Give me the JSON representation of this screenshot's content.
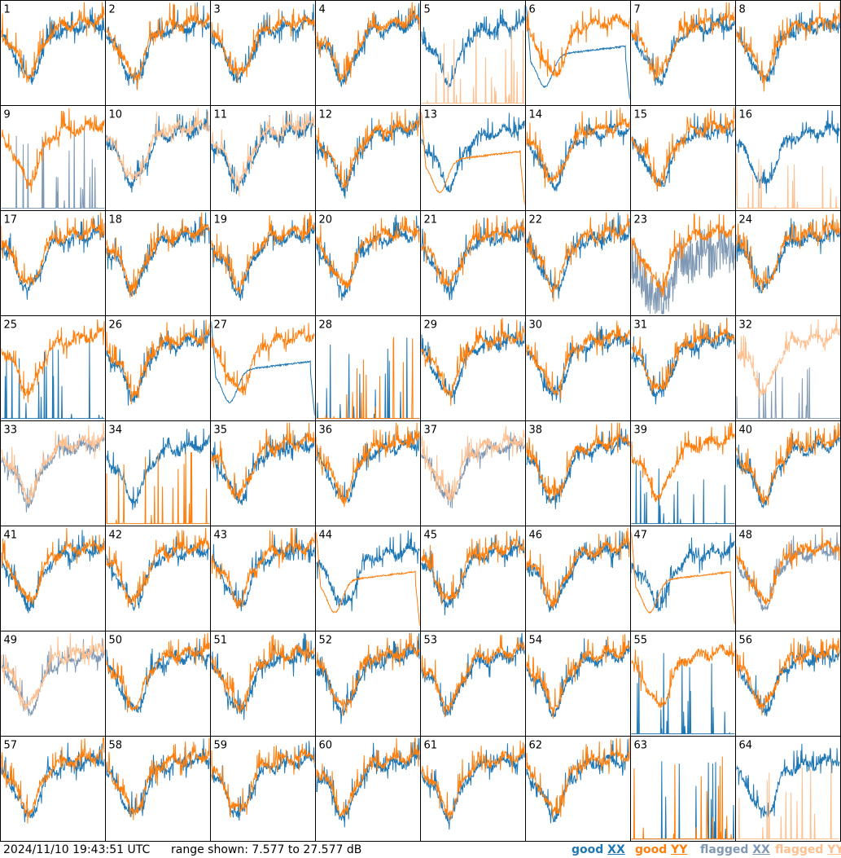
{
  "footer": {
    "timestamp": "2024/11/10 19:43:51 UTC",
    "range_label": "range shown: 7.577 to 27.577 dB"
  },
  "legend": [
    {
      "word": "good",
      "pol": "XX",
      "color": "#1f77b4"
    },
    {
      "word": "good",
      "pol": "YY",
      "color": "#ff7f0e"
    },
    {
      "word": "flagged",
      "pol": "XX",
      "color": "#7f99b4"
    },
    {
      "word": "flagged",
      "pol": "YY",
      "color": "#ffbf8f"
    }
  ],
  "colors": {
    "good_xx": "#1f77b4",
    "good_yy": "#ff7f0e",
    "flagged_xx": "#7f99b4",
    "flagged_yy": "#ffbf8f"
  },
  "chart_data": {
    "type": "line",
    "layout": "8x8 small multiples",
    "ylim": [
      7.577,
      27.577
    ],
    "unit": "dB",
    "grid": false,
    "panels": [
      {
        "label": "1",
        "xx": "good",
        "yy": "good",
        "xx_shape": "normal",
        "yy_shape": "normal"
      },
      {
        "label": "2",
        "xx": "good",
        "yy": "good",
        "xx_shape": "normal",
        "yy_shape": "normal"
      },
      {
        "label": "3",
        "xx": "good",
        "yy": "good",
        "xx_shape": "normal",
        "yy_shape": "normal"
      },
      {
        "label": "4",
        "xx": "good",
        "yy": "good",
        "xx_shape": "normal",
        "yy_shape": "normal"
      },
      {
        "label": "5",
        "xx": "good",
        "yy": "flagged",
        "xx_shape": "normal",
        "yy_shape": "spikes"
      },
      {
        "label": "6",
        "xx": "good",
        "yy": "good",
        "xx_shape": "smooth",
        "yy_shape": "normal"
      },
      {
        "label": "7",
        "xx": "good",
        "yy": "good",
        "xx_shape": "normal",
        "yy_shape": "normal"
      },
      {
        "label": "8",
        "xx": "good",
        "yy": "good",
        "xx_shape": "normal",
        "yy_shape": "normal"
      },
      {
        "label": "9",
        "xx": "flagged",
        "yy": "good",
        "xx_shape": "spikes",
        "yy_shape": "normal"
      },
      {
        "label": "10",
        "xx": "good",
        "yy": "flagged",
        "xx_shape": "normal",
        "yy_shape": "normal"
      },
      {
        "label": "11",
        "xx": "good",
        "yy": "flagged",
        "xx_shape": "normal",
        "yy_shape": "normal"
      },
      {
        "label": "12",
        "xx": "good",
        "yy": "good",
        "xx_shape": "normal",
        "yy_shape": "normal"
      },
      {
        "label": "13",
        "xx": "good",
        "yy": "good",
        "xx_shape": "normal",
        "yy_shape": "smooth"
      },
      {
        "label": "14",
        "xx": "good",
        "yy": "good",
        "xx_shape": "normal",
        "yy_shape": "normal"
      },
      {
        "label": "15",
        "xx": "good",
        "yy": "good",
        "xx_shape": "normal",
        "yy_shape": "normal"
      },
      {
        "label": "16",
        "xx": "good",
        "yy": "flagged",
        "xx_shape": "normal",
        "yy_shape": "spikes"
      },
      {
        "label": "17",
        "xx": "good",
        "yy": "good",
        "xx_shape": "normal",
        "yy_shape": "normal"
      },
      {
        "label": "18",
        "xx": "good",
        "yy": "good",
        "xx_shape": "normal",
        "yy_shape": "normal"
      },
      {
        "label": "19",
        "xx": "good",
        "yy": "good",
        "xx_shape": "normal",
        "yy_shape": "normal"
      },
      {
        "label": "20",
        "xx": "good",
        "yy": "good",
        "xx_shape": "normal",
        "yy_shape": "normal"
      },
      {
        "label": "21",
        "xx": "good",
        "yy": "good",
        "xx_shape": "normal",
        "yy_shape": "normal"
      },
      {
        "label": "22",
        "xx": "good",
        "yy": "good",
        "xx_shape": "normal",
        "yy_shape": "normal"
      },
      {
        "label": "23",
        "xx": "flagged",
        "yy": "good",
        "xx_shape": "noisy",
        "yy_shape": "normal"
      },
      {
        "label": "24",
        "xx": "good",
        "yy": "good",
        "xx_shape": "normal",
        "yy_shape": "normal"
      },
      {
        "label": "25",
        "xx": "good",
        "yy": "good",
        "xx_shape": "spikes",
        "yy_shape": "normal"
      },
      {
        "label": "26",
        "xx": "good",
        "yy": "good",
        "xx_shape": "normal",
        "yy_shape": "normal"
      },
      {
        "label": "27",
        "xx": "good",
        "yy": "good",
        "xx_shape": "smooth",
        "yy_shape": "normal"
      },
      {
        "label": "28",
        "xx": "good",
        "yy": "good",
        "xx_shape": "spikes",
        "yy_shape": "spikes"
      },
      {
        "label": "29",
        "xx": "good",
        "yy": "good",
        "xx_shape": "normal",
        "yy_shape": "normal"
      },
      {
        "label": "30",
        "xx": "good",
        "yy": "good",
        "xx_shape": "normal",
        "yy_shape": "normal"
      },
      {
        "label": "31",
        "xx": "good",
        "yy": "good",
        "xx_shape": "normal",
        "yy_shape": "normal"
      },
      {
        "label": "32",
        "xx": "flagged",
        "yy": "flagged",
        "xx_shape": "spikes",
        "yy_shape": "normal"
      },
      {
        "label": "33",
        "xx": "flagged",
        "yy": "flagged",
        "xx_shape": "normal",
        "yy_shape": "normal"
      },
      {
        "label": "34",
        "xx": "good",
        "yy": "good",
        "xx_shape": "normal",
        "yy_shape": "spikes"
      },
      {
        "label": "35",
        "xx": "good",
        "yy": "good",
        "xx_shape": "normal",
        "yy_shape": "normal"
      },
      {
        "label": "36",
        "xx": "good",
        "yy": "good",
        "xx_shape": "normal",
        "yy_shape": "normal"
      },
      {
        "label": "37",
        "xx": "flagged",
        "yy": "flagged",
        "xx_shape": "normal",
        "yy_shape": "normal"
      },
      {
        "label": "38",
        "xx": "good",
        "yy": "good",
        "xx_shape": "normal",
        "yy_shape": "normal"
      },
      {
        "label": "39",
        "xx": "good",
        "yy": "good",
        "xx_shape": "spikes",
        "yy_shape": "normal"
      },
      {
        "label": "40",
        "xx": "good",
        "yy": "good",
        "xx_shape": "normal",
        "yy_shape": "normal"
      },
      {
        "label": "41",
        "xx": "good",
        "yy": "good",
        "xx_shape": "normal",
        "yy_shape": "normal"
      },
      {
        "label": "42",
        "xx": "good",
        "yy": "good",
        "xx_shape": "normal",
        "yy_shape": "normal"
      },
      {
        "label": "43",
        "xx": "good",
        "yy": "good",
        "xx_shape": "normal",
        "yy_shape": "normal"
      },
      {
        "label": "44",
        "xx": "good",
        "yy": "good",
        "xx_shape": "normal",
        "yy_shape": "smooth"
      },
      {
        "label": "45",
        "xx": "good",
        "yy": "good",
        "xx_shape": "normal",
        "yy_shape": "normal"
      },
      {
        "label": "46",
        "xx": "good",
        "yy": "good",
        "xx_shape": "normal",
        "yy_shape": "normal"
      },
      {
        "label": "47",
        "xx": "good",
        "yy": "good",
        "xx_shape": "normal",
        "yy_shape": "smooth"
      },
      {
        "label": "48",
        "xx": "flagged",
        "yy": "good",
        "xx_shape": "normal",
        "yy_shape": "normal"
      },
      {
        "label": "49",
        "xx": "flagged",
        "yy": "flagged",
        "xx_shape": "normal",
        "yy_shape": "normal"
      },
      {
        "label": "50",
        "xx": "good",
        "yy": "good",
        "xx_shape": "normal",
        "yy_shape": "normal"
      },
      {
        "label": "51",
        "xx": "good",
        "yy": "good",
        "xx_shape": "normal",
        "yy_shape": "normal"
      },
      {
        "label": "52",
        "xx": "good",
        "yy": "good",
        "xx_shape": "normal",
        "yy_shape": "normal"
      },
      {
        "label": "53",
        "xx": "good",
        "yy": "good",
        "xx_shape": "normal",
        "yy_shape": "normal"
      },
      {
        "label": "54",
        "xx": "good",
        "yy": "good",
        "xx_shape": "normal",
        "yy_shape": "normal"
      },
      {
        "label": "55",
        "xx": "good",
        "yy": "good",
        "xx_shape": "spikes",
        "yy_shape": "normal"
      },
      {
        "label": "56",
        "xx": "good",
        "yy": "good",
        "xx_shape": "normal",
        "yy_shape": "normal"
      },
      {
        "label": "57",
        "xx": "good",
        "yy": "good",
        "xx_shape": "normal",
        "yy_shape": "normal"
      },
      {
        "label": "58",
        "xx": "good",
        "yy": "good",
        "xx_shape": "normal",
        "yy_shape": "normal"
      },
      {
        "label": "59",
        "xx": "good",
        "yy": "good",
        "xx_shape": "normal",
        "yy_shape": "normal"
      },
      {
        "label": "60",
        "xx": "good",
        "yy": "good",
        "xx_shape": "normal",
        "yy_shape": "normal"
      },
      {
        "label": "61",
        "xx": "good",
        "yy": "good",
        "xx_shape": "normal",
        "yy_shape": "normal"
      },
      {
        "label": "62",
        "xx": "good",
        "yy": "good",
        "xx_shape": "normal",
        "yy_shape": "normal"
      },
      {
        "label": "63",
        "xx": "good",
        "yy": "good",
        "xx_shape": "spikes",
        "yy_shape": "spikes"
      },
      {
        "label": "64",
        "xx": "good",
        "yy": "flagged",
        "xx_shape": "normal",
        "yy_shape": "spikes"
      }
    ]
  }
}
